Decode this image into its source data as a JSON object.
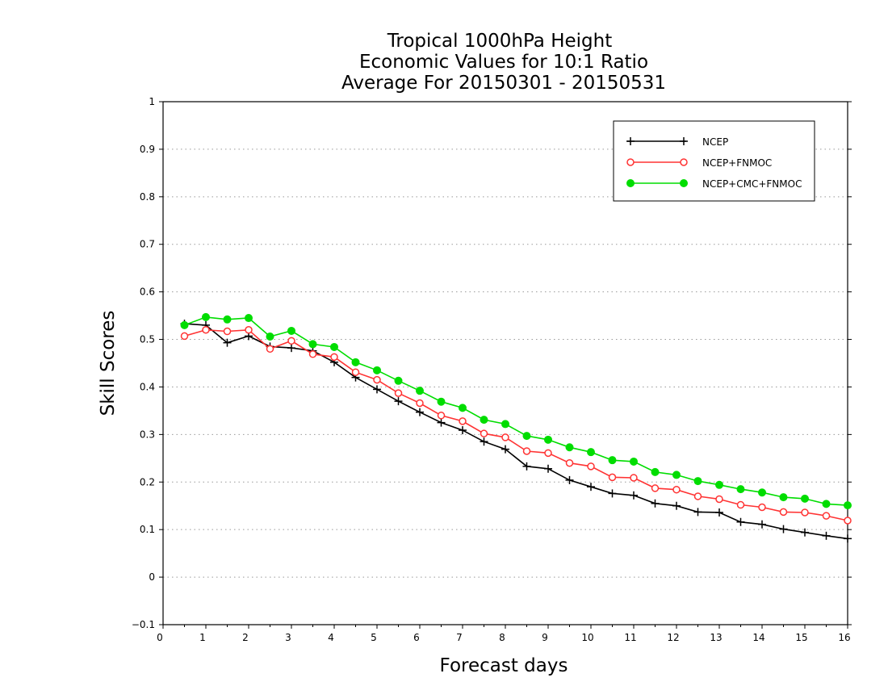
{
  "chart_data": {
    "type": "line",
    "title": [
      "Tropical 1000hPa Height",
      "Economic Values for 10:1 Ratio",
      "Average For 20150301 - 20150531"
    ],
    "xlabel": "Forecast days",
    "ylabel": "Skill Scores",
    "xlim": [
      0,
      16
    ],
    "ylim": [
      -0.1,
      1
    ],
    "xticks": [
      0,
      1,
      2,
      3,
      4,
      5,
      6,
      7,
      8,
      9,
      10,
      11,
      12,
      13,
      14,
      15,
      16
    ],
    "yticks": [
      -0.1,
      0,
      0.1,
      0.2,
      0.3,
      0.4,
      0.5,
      0.6,
      0.7,
      0.8,
      0.9,
      1
    ],
    "grid": "horizontal dotted",
    "legend_position": "top-right",
    "x": [
      0.5,
      1,
      1.5,
      2,
      2.5,
      3,
      3.5,
      4,
      4.5,
      5,
      5.5,
      6,
      6.5,
      7,
      7.5,
      8,
      8.5,
      9,
      9.5,
      10,
      10.5,
      11,
      11.5,
      12,
      12.5,
      13,
      13.5,
      14,
      14.5,
      15,
      15.5,
      16
    ],
    "series": [
      {
        "name": "NCEP",
        "color": "#000000",
        "marker": "plus",
        "values": [
          0.533,
          0.53,
          0.493,
          0.507,
          0.485,
          0.482,
          0.476,
          0.452,
          0.42,
          0.395,
          0.37,
          0.347,
          0.325,
          0.309,
          0.285,
          0.269,
          0.233,
          0.228,
          0.204,
          0.19,
          0.176,
          0.172,
          0.155,
          0.15,
          0.137,
          0.136,
          0.116,
          0.111,
          0.101,
          0.094,
          0.087,
          0.081
        ]
      },
      {
        "name": "NCEP+FNMOC",
        "color": "#ff3333",
        "marker": "open-circle",
        "values": [
          0.507,
          0.52,
          0.517,
          0.52,
          0.48,
          0.497,
          0.469,
          0.463,
          0.431,
          0.415,
          0.387,
          0.366,
          0.34,
          0.328,
          0.302,
          0.294,
          0.265,
          0.261,
          0.24,
          0.233,
          0.21,
          0.209,
          0.187,
          0.184,
          0.17,
          0.164,
          0.152,
          0.147,
          0.137,
          0.136,
          0.129,
          0.119
        ]
      },
      {
        "name": "NCEP+CMC+FNMOC",
        "color": "#00dd00",
        "marker": "filled-circle",
        "values": [
          0.53,
          0.547,
          0.542,
          0.545,
          0.506,
          0.518,
          0.49,
          0.484,
          0.452,
          0.435,
          0.413,
          0.392,
          0.369,
          0.356,
          0.331,
          0.322,
          0.297,
          0.289,
          0.273,
          0.263,
          0.246,
          0.243,
          0.221,
          0.215,
          0.202,
          0.194,
          0.185,
          0.178,
          0.168,
          0.165,
          0.154,
          0.151
        ]
      }
    ]
  }
}
